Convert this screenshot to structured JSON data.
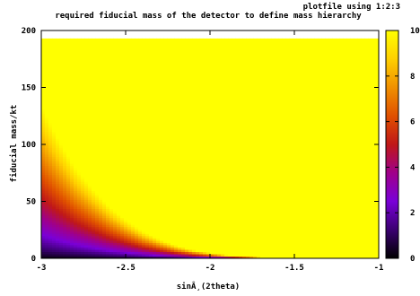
{
  "chart_data": {
    "type": "heatmap",
    "title": "required fiducial mass of the detector to define mass hierarchy",
    "plot_label": "plotfile using 1:2:3",
    "xlabel": "sinÂ¸(2theta)",
    "ylabel": "fiducial mass/kt",
    "xlim": [
      -3,
      -1
    ],
    "ylim": [
      0,
      200
    ],
    "x_ticks": [
      -3,
      -2.5,
      -2,
      -1.5,
      -1
    ],
    "x_tick_labels": [
      "-3",
      "-2.5",
      "-2",
      "-1.5",
      "-1"
    ],
    "y_ticks": [
      0,
      50,
      100,
      150,
      200
    ],
    "y_tick_labels": [
      "0",
      "50",
      "100",
      "150",
      "200"
    ],
    "data_ymax": 193,
    "colorbar": {
      "range": [
        0,
        10
      ],
      "ticks": [
        0,
        2,
        4,
        6,
        8,
        10
      ],
      "tick_labels": [
        "0",
        "2",
        "4",
        "6",
        "8",
        "10"
      ],
      "colors": [
        "#000000",
        "#3a0070",
        "#7a00d8",
        "#a0008a",
        "#c01818",
        "#e05000",
        "#f09000",
        "#ffd000",
        "#ffff00"
      ]
    },
    "boundary_curve": {
      "description_x": [
        -3.0,
        -2.9,
        -2.8,
        -2.7,
        -2.6,
        -2.5,
        -2.4,
        -2.3,
        -2.2,
        -2.1,
        -2.0,
        -1.9,
        -1.8,
        -1.7,
        -1.6,
        -1.55
      ],
      "y_at_value_10": [
        135,
        105,
        80,
        62,
        46,
        34,
        24,
        17,
        11.5,
        7.5,
        5,
        3,
        1.8,
        1.0,
        0.4,
        0
      ]
    },
    "grid": false,
    "legend": "none"
  }
}
